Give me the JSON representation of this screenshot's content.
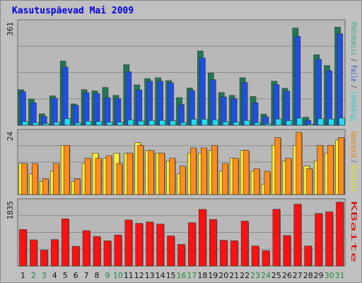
{
  "chart_data": {
    "type": "bar",
    "title": "Kasutuspäevad Mai 2009",
    "categories": [
      "1",
      "2",
      "3",
      "4",
      "5",
      "6",
      "7",
      "8",
      "9",
      "10",
      "11",
      "12",
      "13",
      "14",
      "15",
      "16",
      "17",
      "18",
      "19",
      "20",
      "21",
      "22",
      "23",
      "24",
      "25",
      "26",
      "27",
      "28",
      "29",
      "30",
      "31"
    ],
    "weekend_categories": [
      "2",
      "3",
      "9",
      "10",
      "16",
      "17",
      "23",
      "24",
      "30",
      "31"
    ],
    "panels": [
      {
        "id": "top",
        "ymax": 361,
        "tick_label": "361",
        "ylabel_parts": [
          {
            "text": "Pöördumisi",
            "color": "#33aa88"
          },
          {
            "text": " / ",
            "color": "#444444"
          },
          {
            "text": "Faile",
            "color": "#2255cc"
          },
          {
            "text": " / ",
            "color": "#444444"
          },
          {
            "text": "Lehekülgi",
            "color": "#22cccc"
          }
        ],
        "series": [
          {
            "color": "#1f7a55",
            "values": [
              125,
              92,
              40,
              103,
              226,
              75,
              125,
              121,
              133,
              105,
              213,
              142,
              164,
              167,
              157,
              97,
              131,
              261,
              184,
              115,
              105,
              167,
              101,
              39,
              155,
              130,
              342,
              28,
              248,
              210,
              345
            ]
          },
          {
            "color": "#1f4fe0",
            "values": [
              118,
              79,
              31,
              95,
              205,
              70,
              115,
              112,
              97,
              94,
              188,
              124,
              155,
              155,
              149,
              73,
              122,
              237,
              160,
              100,
              94,
              150,
              79,
              30,
              143,
              120,
              313,
              17,
              232,
              192,
              322
            ]
          },
          {
            "color": "#22ddee",
            "values": [
              13,
              9,
              6,
              11,
              23,
              8,
              14,
              13,
              11,
              11,
              19,
              15,
              17,
              17,
              16,
              9,
              21,
              21,
              19,
              12,
              11,
              17,
              9,
              5,
              22,
              16,
              25,
              4,
              23,
              22,
              25
            ]
          }
        ]
      },
      {
        "id": "middle",
        "ymax": 24,
        "tick_label": "24",
        "ylabel_parts": [
          {
            "text": "Kasutajaid",
            "color": "#ee7700"
          },
          {
            "text": " / ",
            "color": "#444444"
          },
          {
            "text": "Külastused",
            "color": "#dddd00"
          }
        ],
        "series": [
          {
            "color": "#ffee33",
            "values": [
              12,
              8,
              5,
              9,
              19,
              5,
              12,
              16,
              14,
              16,
              16,
              20,
              17,
              16,
              13,
              8,
              16,
              16,
              17,
              9,
              14,
              17,
              9,
              4,
              19,
              13,
              19,
              11,
              13,
              16,
              21
            ]
          },
          {
            "color": "#ff8c1a",
            "values": [
              12,
              12,
              6,
              12,
              19,
              6,
              14,
              14,
              15,
              12,
              16,
              19,
              17,
              16,
              14,
              11,
              18,
              18,
              19,
              12,
              14,
              17,
              10,
              9,
              22,
              14,
              24,
              10,
              19,
              19,
              22
            ]
          }
        ]
      },
      {
        "id": "bottom",
        "ymax": 1835,
        "tick_label": "1835",
        "ylabel_parts": [
          {
            "text": "KBaite",
            "color": "#dd0000"
          }
        ],
        "series": [
          {
            "color": "#ff1111",
            "values": [
              1042,
              746,
              454,
              754,
              1345,
              564,
              1008,
              843,
              719,
              884,
              1313,
              1217,
              1256,
              1196,
              858,
              616,
              1235,
              1614,
              1328,
              735,
              722,
              1281,
              571,
              438,
              1618,
              870,
              1763,
              571,
              1498,
              1545,
              1820
            ]
          }
        ]
      }
    ]
  }
}
